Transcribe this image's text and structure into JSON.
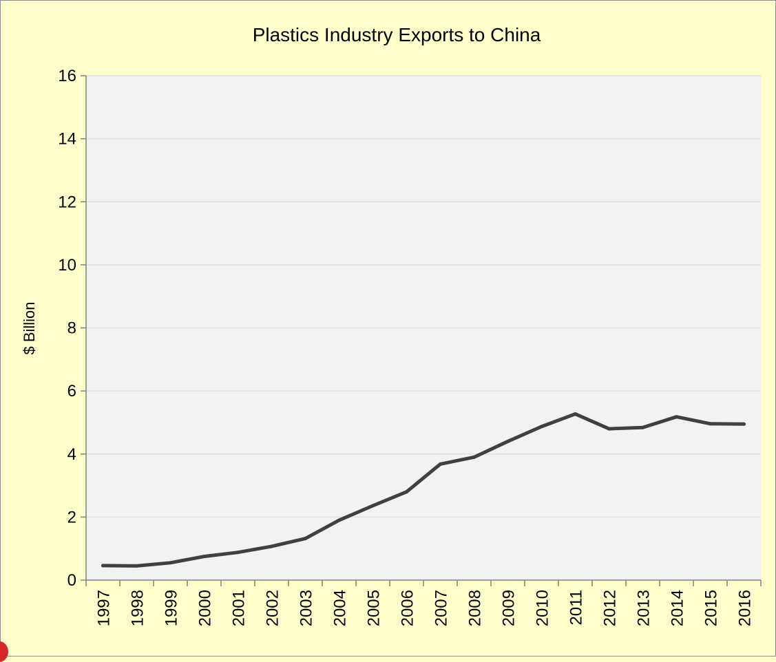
{
  "chart_data": {
    "type": "line",
    "title": "Plastics Industry Exports to China",
    "xlabel": "",
    "ylabel": "$ Billion",
    "ylim": [
      0,
      16
    ],
    "yticks": [
      0,
      2,
      4,
      6,
      8,
      10,
      12,
      14,
      16
    ],
    "categories": [
      "1997",
      "1998",
      "1999",
      "2000",
      "2001",
      "2002",
      "2003",
      "2004",
      "2005",
      "2006",
      "2007",
      "2008",
      "2009",
      "2010",
      "2011",
      "2012",
      "2013",
      "2014",
      "2015",
      "2016"
    ],
    "series": [
      {
        "values": [
          0.46,
          0.45,
          0.55,
          0.75,
          0.88,
          1.07,
          1.32,
          1.9,
          2.36,
          2.8,
          3.68,
          3.9,
          4.4,
          4.87,
          5.27,
          4.8,
          4.84,
          5.18,
          4.96,
          4.95
        ],
        "color": "#404040"
      }
    ],
    "grid": true,
    "plot_background": "#f2f2f2",
    "page_background": "#ffffcc"
  }
}
